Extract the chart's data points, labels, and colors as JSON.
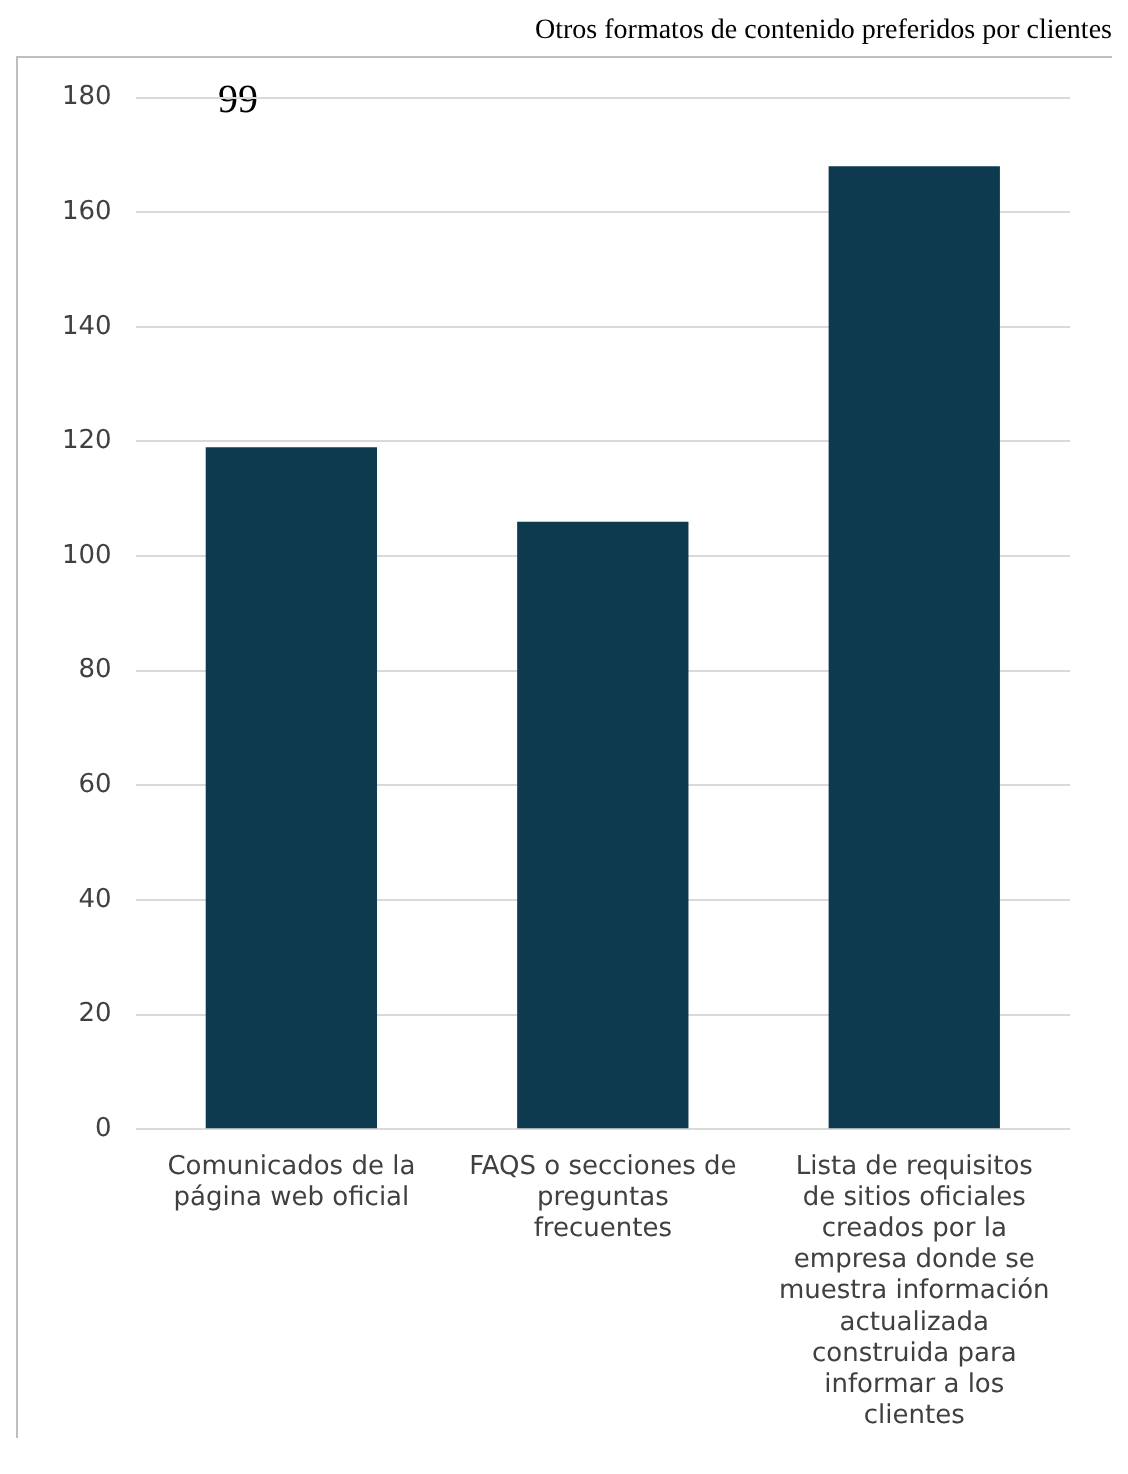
{
  "chart_data": {
    "type": "bar",
    "title": "Otros formatos de contenido preferidos por clientes",
    "annotations": [
      "99"
    ],
    "categories": [
      "Comunicados de la página web oficial",
      "FAQS o secciones de preguntas frecuentes",
      "Lista de requisitos de sitios oficiales creados por la empresa donde se muestra información actualizada construida para informar a los clientes"
    ],
    "values": [
      119,
      106,
      168
    ],
    "color": "#0e3a4f",
    "ylim": [
      0,
      180
    ],
    "yticks": [
      0,
      20,
      40,
      60,
      80,
      100,
      120,
      140,
      160,
      180
    ],
    "grid": "y",
    "legend": false
  }
}
